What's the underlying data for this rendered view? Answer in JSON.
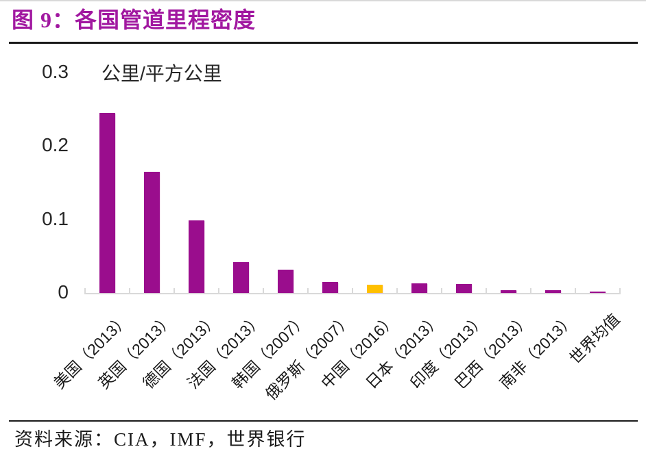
{
  "title": "图 9：各国管道里程密度",
  "chart_data": {
    "type": "bar",
    "title": "各国管道里程密度",
    "unit_label": "公里/平方公里",
    "categories": [
      "美国（2013）",
      "英国（2013）",
      "德国（2013）",
      "法国（2013）",
      "韩国（2007）",
      "俄罗斯（2007）",
      "中国（2016）",
      "日本（2013）",
      "印度（2013）",
      "巴西（2013）",
      "南非（2013）",
      "世界均值"
    ],
    "values": [
      0.245,
      0.165,
      0.099,
      0.042,
      0.032,
      0.015,
      0.011,
      0.013,
      0.012,
      0.004,
      0.004,
      0.001
    ],
    "highlight_category": "中国（2016）",
    "ylabel": "公里/平方公里",
    "ylim": [
      0,
      0.3
    ],
    "yticks": [
      {
        "label": "0",
        "value": 0
      },
      {
        "label": "0.1",
        "value": 0.1
      },
      {
        "label": "0.2",
        "value": 0.2
      },
      {
        "label": "0.3",
        "value": 0.3
      }
    ],
    "grid": false,
    "legend": "none"
  },
  "colors": {
    "bar": "#9A0D8D",
    "highlight_bar": "#FFC000",
    "title_text": "#A118A0",
    "axis_line": "#D9D9D9",
    "text": "#262626"
  },
  "source": {
    "label": "资料来源：CIA，IMF，世界银行"
  }
}
